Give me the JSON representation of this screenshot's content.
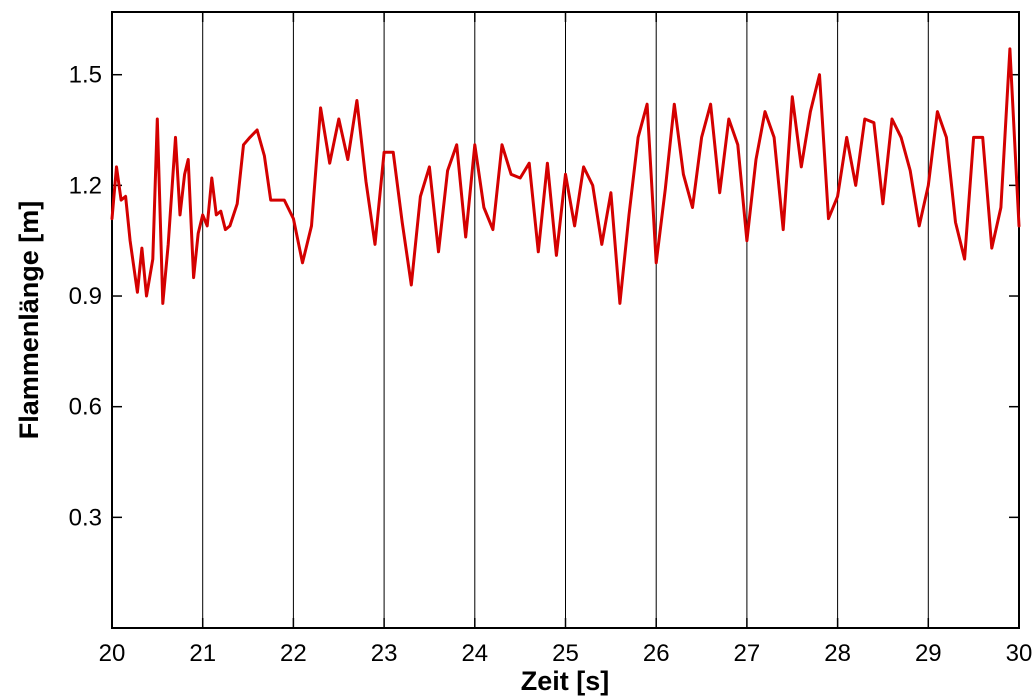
{
  "chart_data": {
    "type": "line",
    "title": "",
    "xlabel": "Zeit [s]",
    "ylabel": "Flammenlänge [m]",
    "xlim": [
      20,
      30
    ],
    "ylim": [
      0,
      1.67
    ],
    "xticks": [
      20,
      21,
      22,
      23,
      24,
      25,
      26,
      27,
      28,
      29,
      30
    ],
    "yticks": [
      0.3,
      0.6,
      0.9,
      1.2,
      1.5
    ],
    "xtick_labels": [
      "20",
      "21",
      "22",
      "23",
      "24",
      "25",
      "26",
      "27",
      "28",
      "29",
      "30"
    ],
    "ytick_labels": [
      "0.3",
      "0.6",
      "0.9",
      "1.2",
      "1.5"
    ],
    "grid": "vertical",
    "line_color": "#d40000",
    "series": [
      {
        "x": [
          20.0,
          20.05,
          20.1,
          20.15,
          20.2,
          20.28,
          20.33,
          20.38,
          20.45,
          20.5,
          20.56,
          20.62,
          20.7,
          20.75,
          20.8,
          20.84,
          20.9,
          20.95,
          21.0,
          21.05,
          21.1,
          21.15,
          21.2,
          21.25,
          21.3,
          21.38,
          21.45,
          21.52,
          21.6,
          21.68,
          21.75,
          21.82,
          21.9,
          22.0,
          22.1,
          22.2,
          22.3,
          22.4,
          22.5,
          22.6,
          22.7,
          22.8,
          22.9,
          23.0,
          23.1,
          23.2,
          23.3,
          23.4,
          23.5,
          23.6,
          23.7,
          23.8,
          23.9,
          24.0,
          24.1,
          24.2,
          24.3,
          24.4,
          24.5,
          24.6,
          24.7,
          24.8,
          24.9,
          25.0,
          25.1,
          25.2,
          25.3,
          25.4,
          25.5,
          25.6,
          25.7,
          25.8,
          25.9,
          26.0,
          26.1,
          26.2,
          26.3,
          26.4,
          26.5,
          26.6,
          26.7,
          26.8,
          26.9,
          27.0,
          27.1,
          27.2,
          27.3,
          27.4,
          27.5,
          27.6,
          27.7,
          27.8,
          27.9,
          28.0,
          28.1,
          28.2,
          28.3,
          28.4,
          28.5,
          28.6,
          28.7,
          28.8,
          28.9,
          29.0,
          29.1,
          29.2,
          29.3,
          29.4,
          29.5,
          29.6,
          29.7,
          29.8,
          29.9,
          30.0
        ],
        "values": [
          1.11,
          1.25,
          1.16,
          1.17,
          1.05,
          0.91,
          1.03,
          0.9,
          1.0,
          1.38,
          0.88,
          1.04,
          1.33,
          1.12,
          1.23,
          1.27,
          0.95,
          1.07,
          1.12,
          1.09,
          1.22,
          1.12,
          1.13,
          1.08,
          1.09,
          1.15,
          1.31,
          1.33,
          1.35,
          1.28,
          1.16,
          1.16,
          1.16,
          1.11,
          0.99,
          1.09,
          1.41,
          1.26,
          1.38,
          1.27,
          1.43,
          1.21,
          1.04,
          1.29,
          1.29,
          1.1,
          0.93,
          1.17,
          1.25,
          1.02,
          1.24,
          1.31,
          1.06,
          1.31,
          1.14,
          1.08,
          1.31,
          1.23,
          1.22,
          1.26,
          1.02,
          1.26,
          1.01,
          1.23,
          1.09,
          1.25,
          1.2,
          1.04,
          1.18,
          0.88,
          1.12,
          1.33,
          1.42,
          0.99,
          1.19,
          1.42,
          1.23,
          1.14,
          1.33,
          1.42,
          1.18,
          1.38,
          1.31,
          1.05,
          1.27,
          1.4,
          1.33,
          1.08,
          1.44,
          1.25,
          1.4,
          1.5,
          1.11,
          1.17,
          1.33,
          1.2,
          1.38,
          1.37,
          1.15,
          1.38,
          1.33,
          1.24,
          1.09,
          1.2,
          1.4,
          1.33,
          1.1,
          1.0,
          1.33,
          1.33,
          1.03,
          1.14,
          1.57,
          1.09
        ]
      }
    ]
  }
}
